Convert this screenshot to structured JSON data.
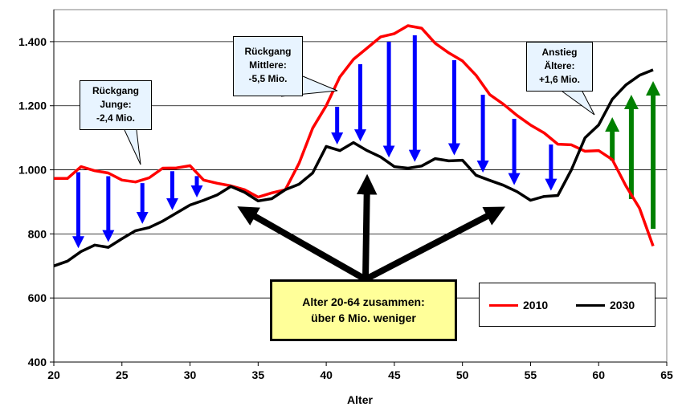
{
  "chart_data": {
    "type": "line",
    "xlabel": "Alter",
    "ylabel": "",
    "xlim": [
      20,
      65
    ],
    "ylim": [
      400,
      1500
    ],
    "xticks": [
      "20",
      "25",
      "30",
      "35",
      "40",
      "45",
      "50",
      "55",
      "60",
      "65"
    ],
    "yticks": [
      "400",
      "600",
      "800",
      "1.000",
      "1.200",
      "1.400"
    ],
    "grid": true,
    "legend_position": "bottom-right",
    "series": [
      {
        "name": "2010",
        "color": "#ff0000",
        "x": [
          20,
          21,
          22,
          23,
          24,
          25,
          26,
          27,
          28,
          29,
          30,
          31,
          32,
          33,
          34,
          35,
          36,
          37,
          38,
          39,
          40,
          41,
          42,
          43,
          44,
          45,
          46,
          47,
          48,
          49,
          50,
          51,
          52,
          53,
          54,
          55,
          56,
          57,
          58,
          59,
          60,
          61,
          62,
          63,
          64
        ],
        "values": [
          973,
          973,
          1010,
          997,
          990,
          968,
          962,
          975,
          1005,
          1006,
          1013,
          968,
          958,
          950,
          938,
          915,
          928,
          938,
          1020,
          1130,
          1200,
          1290,
          1345,
          1380,
          1415,
          1425,
          1450,
          1442,
          1395,
          1365,
          1340,
          1295,
          1235,
          1205,
          1170,
          1140,
          1115,
          1080,
          1078,
          1058,
          1060,
          1032,
          950,
          880,
          762
        ]
      },
      {
        "name": "2030",
        "color": "#000000",
        "x": [
          20,
          21,
          22,
          23,
          24,
          25,
          26,
          27,
          28,
          29,
          30,
          31,
          32,
          33,
          34,
          35,
          36,
          37,
          38,
          39,
          40,
          41,
          42,
          43,
          44,
          45,
          46,
          47,
          48,
          49,
          50,
          51,
          52,
          53,
          54,
          55,
          56,
          57,
          58,
          59,
          60,
          61,
          62,
          63,
          64
        ],
        "values": [
          700,
          715,
          745,
          765,
          758,
          785,
          810,
          820,
          840,
          865,
          890,
          905,
          922,
          948,
          930,
          903,
          910,
          938,
          955,
          990,
          1073,
          1060,
          1085,
          1060,
          1040,
          1010,
          1005,
          1012,
          1035,
          1028,
          1030,
          983,
          967,
          952,
          932,
          905,
          917,
          920,
          1000,
          1100,
          1140,
          1220,
          1265,
          1295,
          1312
        ]
      }
    ],
    "annotations": [
      {
        "id": "junge",
        "lines": [
          "Rückgang",
          "Junge:",
          "-2,4 Mio."
        ]
      },
      {
        "id": "mittlere",
        "lines": [
          "Rückgang",
          "Mittlere:",
          "-5,5 Mio."
        ]
      },
      {
        "id": "aeltere",
        "lines": [
          "Anstieg",
          "Ältere:",
          "+1,6 Mio."
        ]
      },
      {
        "id": "summary",
        "lines": [
          "Alter 20-64 zusammen:",
          "über 6 Mio. weniger"
        ]
      }
    ],
    "colors": {
      "decline_arrow": "#0000ff",
      "increase_arrow": "#008000",
      "summary_arrow": "#000000"
    }
  }
}
